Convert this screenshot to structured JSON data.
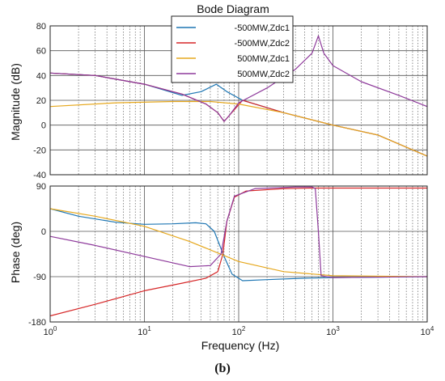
{
  "chart_data": {
    "type": "line",
    "title": "Bode Diagram",
    "xlabel": "Frequency  (Hz)",
    "x_scale": "log",
    "xlim": [
      1,
      10000
    ],
    "x_ticks": [
      {
        "base": "10",
        "exp": "0"
      },
      {
        "base": "10",
        "exp": "1"
      },
      {
        "base": "10",
        "exp": "2"
      },
      {
        "base": "10",
        "exp": "3"
      },
      {
        "base": "10",
        "exp": "4"
      }
    ],
    "caption": "(b)",
    "grid": true,
    "legend_position": "top-center",
    "panels": [
      {
        "name": "magnitude",
        "ylabel": "Magnitude (dB)",
        "ylim": [
          -40,
          80
        ],
        "yticks": [
          -40,
          -20,
          0,
          20,
          40,
          60,
          80
        ]
      },
      {
        "name": "phase",
        "ylabel": "Phase (deg)",
        "ylim": [
          -180,
          90
        ],
        "yticks": [
          -180,
          -90,
          0,
          90
        ]
      }
    ],
    "series": [
      {
        "name": "-500MW,Zdc1",
        "color": "#1f77b4",
        "magnitude": [
          [
            1,
            42
          ],
          [
            3,
            40
          ],
          [
            10,
            33
          ],
          [
            25,
            24
          ],
          [
            40,
            27
          ],
          [
            58,
            33
          ],
          [
            75,
            27
          ],
          [
            110,
            20
          ],
          [
            300,
            10
          ],
          [
            1000,
            0
          ],
          [
            3000,
            -8
          ],
          [
            10000,
            -25
          ]
        ],
        "phase": [
          [
            1,
            45
          ],
          [
            2,
            30
          ],
          [
            5,
            18
          ],
          [
            10,
            14
          ],
          [
            20,
            15
          ],
          [
            35,
            17
          ],
          [
            45,
            15
          ],
          [
            55,
            0
          ],
          [
            70,
            -50
          ],
          [
            85,
            -85
          ],
          [
            110,
            -98
          ],
          [
            200,
            -96
          ],
          [
            500,
            -93
          ],
          [
            1000,
            -92
          ],
          [
            10000,
            -90
          ]
        ]
      },
      {
        "name": "-500MW,Zdc2",
        "color": "#d62728",
        "magnitude": [
          [
            1,
            42
          ],
          [
            3,
            40
          ],
          [
            10,
            33
          ],
          [
            25,
            25
          ],
          [
            45,
            17
          ],
          [
            60,
            10
          ],
          [
            70,
            3
          ],
          [
            80,
            8
          ],
          [
            110,
            20
          ],
          [
            300,
            10
          ],
          [
            1000,
            0
          ],
          [
            3000,
            -8
          ],
          [
            10000,
            -25
          ]
        ],
        "phase": [
          [
            1,
            -168
          ],
          [
            3,
            -145
          ],
          [
            10,
            -118
          ],
          [
            25,
            -103
          ],
          [
            45,
            -93
          ],
          [
            60,
            -80
          ],
          [
            68,
            -45
          ],
          [
            75,
            20
          ],
          [
            90,
            68
          ],
          [
            120,
            80
          ],
          [
            300,
            85
          ],
          [
            600,
            86
          ],
          [
            650,
            86
          ],
          [
            10000,
            86
          ]
        ]
      },
      {
        "name": "500MW,Zdc1",
        "color": "#e6a81e",
        "magnitude": [
          [
            1,
            15
          ],
          [
            5,
            18
          ],
          [
            20,
            19
          ],
          [
            50,
            19
          ],
          [
            100,
            17
          ],
          [
            300,
            10
          ],
          [
            1000,
            0
          ],
          [
            3000,
            -8
          ],
          [
            10000,
            -25
          ]
        ],
        "phase": [
          [
            1,
            45
          ],
          [
            3,
            30
          ],
          [
            10,
            10
          ],
          [
            30,
            -20
          ],
          [
            100,
            -60
          ],
          [
            300,
            -80
          ],
          [
            1000,
            -88
          ],
          [
            10000,
            -90
          ]
        ]
      },
      {
        "name": "500MW,Zdc2",
        "color": "#8e3a9b",
        "magnitude": [
          [
            1,
            42
          ],
          [
            3,
            40
          ],
          [
            10,
            33
          ],
          [
            25,
            25
          ],
          [
            45,
            17
          ],
          [
            60,
            10
          ],
          [
            70,
            3
          ],
          [
            80,
            8
          ],
          [
            100,
            18
          ],
          [
            200,
            30
          ],
          [
            400,
            45
          ],
          [
            600,
            58
          ],
          [
            700,
            72
          ],
          [
            800,
            58
          ],
          [
            1000,
            48
          ],
          [
            2000,
            35
          ],
          [
            5000,
            24
          ],
          [
            10000,
            15
          ]
        ],
        "phase": [
          [
            1,
            -10
          ],
          [
            3,
            -28
          ],
          [
            10,
            -50
          ],
          [
            30,
            -70
          ],
          [
            50,
            -68
          ],
          [
            65,
            -45
          ],
          [
            75,
            20
          ],
          [
            90,
            70
          ],
          [
            150,
            85
          ],
          [
            400,
            88
          ],
          [
            600,
            88
          ],
          [
            650,
            85
          ],
          [
            700,
            0
          ],
          [
            750,
            -88
          ],
          [
            1000,
            -92
          ],
          [
            10000,
            -90
          ]
        ]
      }
    ]
  }
}
